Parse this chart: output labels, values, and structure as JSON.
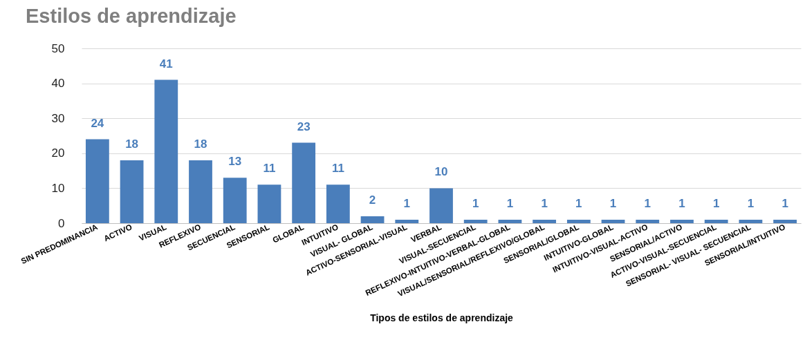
{
  "chart_data": {
    "type": "bar",
    "title": "Estilos de aprendizaje",
    "xlabel": "Tipos de estilos de aprendizaje",
    "categories": [
      "SIN PREDOMINANCIA",
      "ACTIVO",
      "VISUAL",
      "REFLEXIVO",
      "SECUENCIAL",
      "SENSORIAL",
      "GLOBAL",
      "INTUITIVO",
      "VISUAL- GLOBAL",
      "ACTIVO-SENSORIAL-VISUAL",
      "VERBAL",
      "VISUAL-SECUENCIAL",
      "REFLEXIVO-INTUITIVO-VERBAL-GLOBAL",
      "VISUAL/SENSORIAL/REFLEXIVO/GLOBAL",
      "SENSORIAL/GLOBAL",
      "INTUITIVO-GLOBAL",
      "INTUITIVO-VISUAL-ACTIVO",
      "SENSORIAL/ACTIVO",
      "ACTIVO-VISUAL-SECUENCIAL",
      "SENSORIAL- VISUAL- SECUENCIAL",
      "SENSORIAL/INTUITIVO"
    ],
    "values": [
      24,
      18,
      41,
      18,
      13,
      11,
      23,
      11,
      2,
      1,
      10,
      1,
      1,
      1,
      1,
      1,
      1,
      1,
      1,
      1,
      1
    ],
    "color": "#4a7ebb",
    "ylim": [
      0,
      50
    ],
    "yticks": [
      0,
      10,
      20,
      30,
      40,
      50
    ],
    "grid": "y",
    "data_labels": true
  }
}
